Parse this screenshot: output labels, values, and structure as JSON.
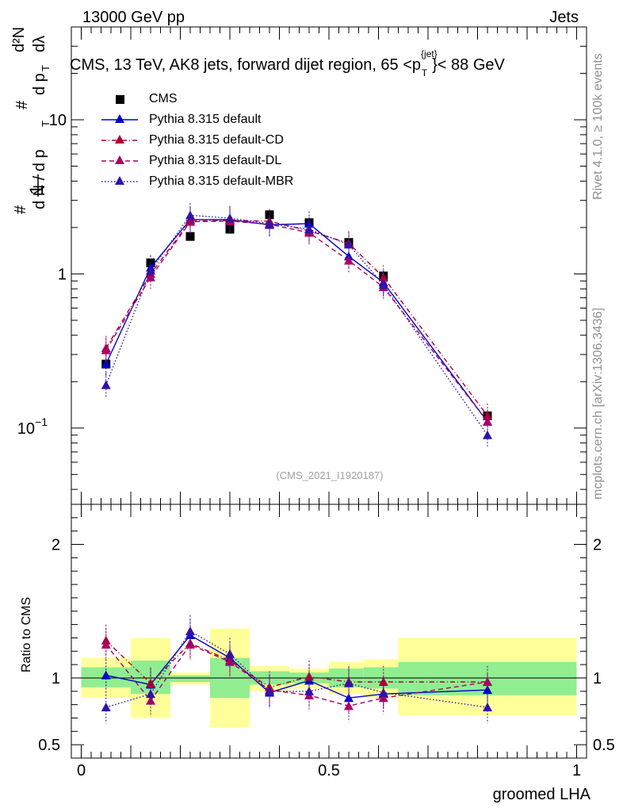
{
  "header": {
    "left": "13000 GeV pp",
    "right": "Jets",
    "title_main": "CMS, 13 TeV, AK8 jets, forward dijet region, 65 <p",
    "title_sup": "{jet}",
    "title_sub": "T",
    "title_end": "}< 88 GeV"
  },
  "side": {
    "rivet": "Rivet 4.1.0, ≥ 100k events",
    "mcplots": "mcplots.cern.ch [arXiv:1306.3436]"
  },
  "watermark": "(CMS_2021_I1920187)",
  "colors": {
    "cms": "#000000",
    "default": "#0000cc",
    "cd": "#aa0033",
    "dl": "#aa0066",
    "mbr": "#3311aa",
    "band_green": "#90ee90",
    "band_yellow": "#ffff99"
  },
  "chart_data": [
    {
      "type": "line",
      "panel": "main",
      "xlabel": "groomed LHA",
      "ylabel_parts": [
        "1",
        "d N / d p",
        "T",
        "d²N",
        "d p",
        "T",
        "dλ",
        "#",
        "#",
        "#"
      ],
      "ylabel_plain": "1/(dN/dpT) d²N/(dpT dλ)",
      "yscale": "log",
      "xlim": [
        -0.02,
        1.02
      ],
      "ylim": [
        0.032,
        40
      ],
      "y_ticks": [
        {
          "value": 0.1,
          "label": "10",
          "sup": "−1"
        },
        {
          "value": 1,
          "label": "1"
        },
        {
          "value": 10,
          "label": "10"
        }
      ],
      "x": [
        0.05,
        0.14,
        0.22,
        0.3,
        0.38,
        0.46,
        0.54,
        0.61,
        0.82
      ],
      "series": [
        {
          "name": "CMS",
          "key": "cms",
          "marker": "square",
          "values": [
            0.26,
            1.18,
            1.75,
            1.95,
            2.42,
            2.15,
            1.6,
            0.97,
            0.12
          ]
        },
        {
          "name": "Pythia 8.315 default",
          "key": "default",
          "marker": "triangle",
          "values": [
            0.26,
            1.1,
            2.25,
            2.25,
            2.08,
            2.12,
            1.3,
            0.88,
            0.11
          ]
        },
        {
          "name": "Pythia 8.315 default-CD",
          "key": "cd",
          "marker": "triangle",
          "values": [
            0.33,
            1.0,
            2.2,
            2.22,
            2.2,
            1.9,
            1.58,
            0.95,
            0.12
          ]
        },
        {
          "name": "Pythia 8.315 default-DL",
          "key": "dl",
          "marker": "triangle",
          "values": [
            0.32,
            0.95,
            2.18,
            2.2,
            2.1,
            1.85,
            1.22,
            0.82,
            0.11
          ]
        },
        {
          "name": "Pythia 8.315 default-MBR",
          "key": "mbr",
          "marker": "triangle",
          "values": [
            0.19,
            1.05,
            2.4,
            2.3,
            2.12,
            1.95,
            1.55,
            0.85,
            0.09
          ]
        }
      ]
    },
    {
      "type": "line",
      "panel": "ratio",
      "xlabel": "groomed LHA",
      "ylabel": "Ratio to CMS",
      "ylim": [
        0.4,
        2.3
      ],
      "y_ticks": [
        {
          "value": 0.5,
          "label": "0.5"
        },
        {
          "value": 1,
          "label": "1"
        },
        {
          "value": 2,
          "label": "2"
        }
      ],
      "x_ticks": [
        {
          "value": 0,
          "label": "0"
        },
        {
          "value": 0.5,
          "label": "0.5"
        },
        {
          "value": 1,
          "label": "1"
        }
      ],
      "bands": [
        {
          "x0": 0.0,
          "x1": 0.1,
          "green": [
            0.93,
            1.08
          ],
          "yellow": [
            0.85,
            1.15
          ]
        },
        {
          "x0": 0.1,
          "x1": 0.18,
          "green": [
            0.88,
            1.13
          ],
          "yellow": [
            0.7,
            1.3
          ]
        },
        {
          "x0": 0.18,
          "x1": 0.26,
          "green": [
            0.97,
            1.02
          ],
          "yellow": [
            0.95,
            1.04
          ]
        },
        {
          "x0": 0.26,
          "x1": 0.34,
          "green": [
            0.85,
            1.15
          ],
          "yellow": [
            0.63,
            1.37
          ]
        },
        {
          "x0": 0.34,
          "x1": 0.42,
          "green": [
            0.95,
            1.05
          ],
          "yellow": [
            0.9,
            1.09
          ]
        },
        {
          "x0": 0.42,
          "x1": 0.5,
          "green": [
            0.96,
            1.04
          ],
          "yellow": [
            0.92,
            1.07
          ]
        },
        {
          "x0": 0.5,
          "x1": 0.57,
          "green": [
            0.93,
            1.07
          ],
          "yellow": [
            0.88,
            1.12
          ]
        },
        {
          "x0": 0.57,
          "x1": 0.64,
          "green": [
            0.92,
            1.08
          ],
          "yellow": [
            0.85,
            1.14
          ]
        },
        {
          "x0": 0.64,
          "x1": 1.0,
          "green": [
            0.87,
            1.12
          ],
          "yellow": [
            0.72,
            1.3
          ]
        }
      ],
      "x": [
        0.05,
        0.14,
        0.22,
        0.3,
        0.38,
        0.46,
        0.54,
        0.61,
        0.82
      ],
      "series": [
        {
          "name": "Pythia 8.315 default",
          "key": "default",
          "values": [
            1.02,
            0.95,
            1.32,
            1.15,
            0.89,
            0.98,
            0.85,
            0.88,
            0.91
          ]
        },
        {
          "name": "Pythia 8.315 default-CD",
          "key": "cd",
          "values": [
            1.28,
            0.96,
            1.26,
            1.13,
            0.93,
            1.01,
            0.97,
            0.97,
            0.97
          ]
        },
        {
          "name": "Pythia 8.315 default-DL",
          "key": "dl",
          "values": [
            1.25,
            0.83,
            1.25,
            1.12,
            0.91,
            0.87,
            0.79,
            0.85,
            0.97
          ]
        },
        {
          "name": "Pythia 8.315 default-MBR",
          "key": "mbr",
          "values": [
            0.78,
            0.88,
            1.35,
            1.18,
            0.9,
            0.9,
            0.96,
            0.89,
            0.78
          ]
        }
      ]
    }
  ]
}
